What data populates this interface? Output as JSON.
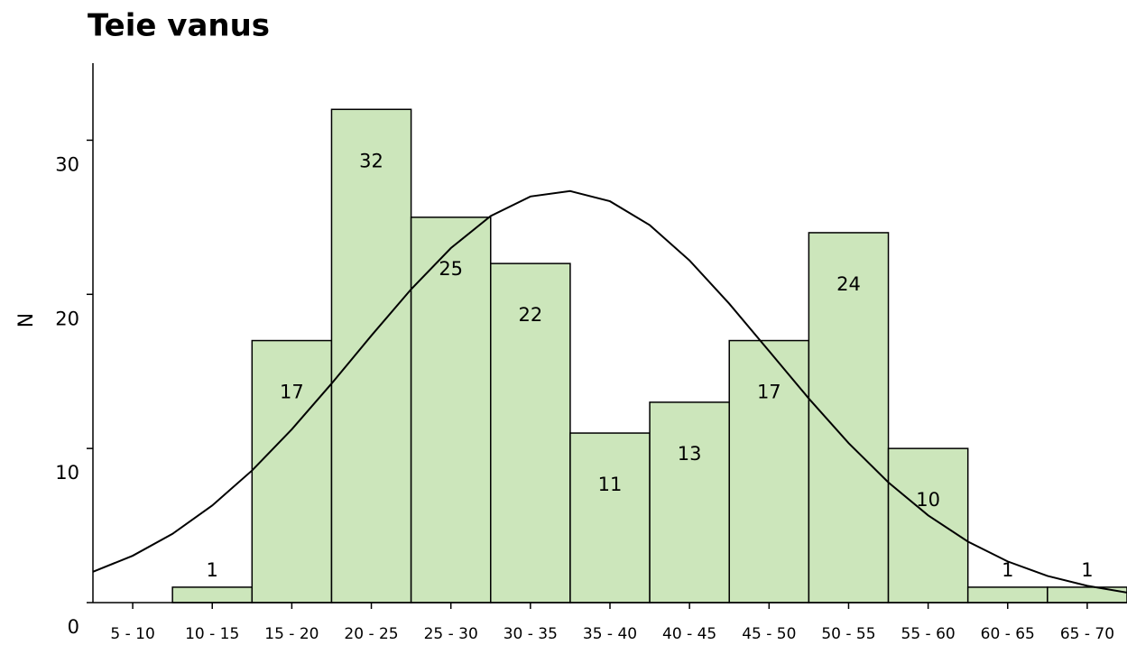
{
  "chart_data": {
    "type": "histogram",
    "title": "Teie vanus",
    "ylabel": "N",
    "categories": [
      "5 - 10",
      "10 - 15",
      "15 - 20",
      "20 - 25",
      "25 - 30",
      "30 - 35",
      "35 - 40",
      "40 - 45",
      "45 - 50",
      "50 - 55",
      "55 - 60",
      "60 - 65",
      "65 - 70"
    ],
    "values": [
      null,
      1,
      17,
      32,
      25,
      22,
      11,
      13,
      17,
      24,
      10,
      1,
      1
    ],
    "color": "#cce6bb",
    "xlim": [
      5,
      70
    ],
    "ylim": [
      0,
      35
    ],
    "yticks": [
      0,
      10,
      20,
      30
    ],
    "curve": {
      "color": "#000000",
      "x": [
        5,
        7.5,
        10,
        12.5,
        15,
        17.5,
        20,
        22.5,
        25,
        27.5,
        30,
        32.5,
        35,
        37.5,
        40,
        42.5,
        45,
        47.5,
        50,
        52.5,
        55,
        57.5,
        60,
        62.5,
        65,
        67.5,
        70
      ],
      "values": [
        2.0,
        3.04,
        4.46,
        6.3,
        8.57,
        11.24,
        14.21,
        17.32,
        20.33,
        23.0,
        25.08,
        26.35,
        26.7,
        26.04,
        24.49,
        22.2,
        19.39,
        16.32,
        13.24,
        10.35,
        7.8,
        5.66,
        3.96,
        2.67,
        1.73,
        1.09,
        0.65
      ]
    }
  }
}
